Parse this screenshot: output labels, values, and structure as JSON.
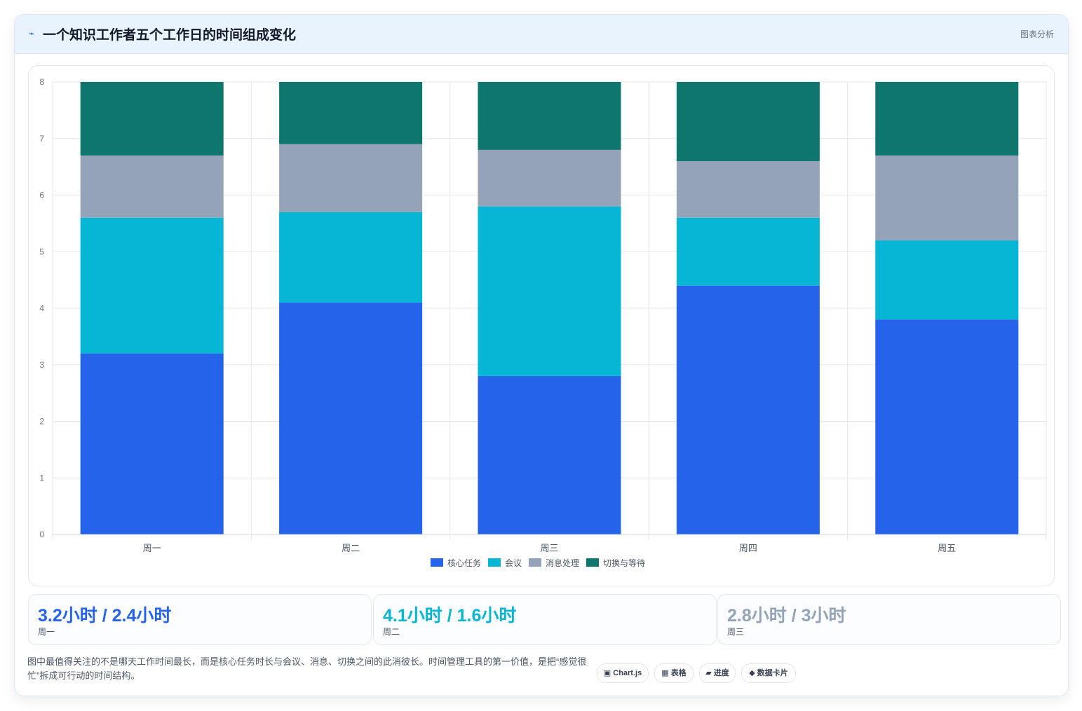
{
  "header": {
    "icon": "⌁",
    "title": "一个知识工作者五个工作日的时间组成变化",
    "tag": "图表分析"
  },
  "chart_data": {
    "type": "bar",
    "stacked": true,
    "categories": [
      "周一",
      "周二",
      "周三",
      "周四",
      "周五"
    ],
    "series": [
      {
        "name": "核心任务",
        "color": "#2563eb",
        "values": [
          3.2,
          4.1,
          2.8,
          4.4,
          3.8
        ]
      },
      {
        "name": "会议",
        "color": "#06b6d4",
        "values": [
          2.4,
          1.6,
          3.0,
          1.2,
          1.4
        ]
      },
      {
        "name": "消息处理",
        "color": "#94a3b8",
        "values": [
          1.1,
          1.2,
          1.0,
          1.0,
          1.5
        ]
      },
      {
        "name": "切换与等待",
        "color": "#0f766e",
        "values": [
          1.3,
          1.1,
          1.2,
          1.4,
          1.3
        ]
      }
    ],
    "ylim": [
      0,
      8
    ],
    "yticks": [
      "0",
      "1",
      "2",
      "3",
      "4",
      "5",
      "6",
      "7",
      "8"
    ],
    "grid": true,
    "legend": "bottom"
  },
  "stats": [
    {
      "value": "3.2小时 / 2.4小时",
      "label": "周一",
      "color": "#2563eb"
    },
    {
      "value": "4.1小时 / 1.6小时",
      "label": "周二",
      "color": "#06b6d4"
    },
    {
      "value": "2.8小时 / 3小时",
      "label": "周三",
      "color": "#94a3b8"
    }
  ],
  "note": "图中最值得关注的不是哪天工作时间最长，而是核心任务时长与会议、消息、切换之间的此消彼长。时间管理工具的第一价值，是把“感觉很忙”拆成可行动的时间结构。",
  "pills": [
    "▣ Chart.js",
    "▦ 表格",
    "▰ 进度",
    "◆ 数据卡片"
  ]
}
